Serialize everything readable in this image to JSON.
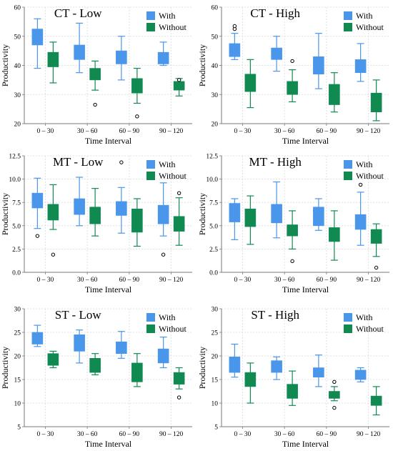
{
  "colors": {
    "with": "#4a96ea",
    "without": "#118a52",
    "grid": "#d9d9d9",
    "axis": "#777777",
    "outlier": "#000000"
  },
  "chart_data": [
    {
      "type": "boxplot",
      "title": "CT - Low",
      "xlabel": "Time Interval",
      "ylabel": "Productivity",
      "ylim": [
        20,
        60
      ],
      "yticks": [
        "20",
        "30",
        "40",
        "50",
        "60"
      ],
      "grid": true,
      "legend": "top-right",
      "categories": [
        "0 – 30",
        "30 – 60",
        "60 – 90",
        "90 – 120"
      ],
      "series": [
        {
          "name": "With",
          "boxes": [
            {
              "whislo": 39,
              "q1": 47,
              "q3": 52.5,
              "whishi": 56,
              "fliers": []
            },
            {
              "whislo": 37.5,
              "q1": 42,
              "q3": 47,
              "whishi": 54.5,
              "fliers": []
            },
            {
              "whislo": 35,
              "q1": 40.5,
              "q3": 45,
              "whishi": 50,
              "fliers": []
            },
            {
              "whislo": 40,
              "q1": 40.5,
              "q3": 44.5,
              "whishi": 48,
              "fliers": []
            }
          ]
        },
        {
          "name": "Without",
          "boxes": [
            {
              "whislo": 34,
              "q1": 39.5,
              "q3": 44.5,
              "whishi": 48,
              "fliers": []
            },
            {
              "whislo": 31.5,
              "q1": 35,
              "q3": 39,
              "whishi": 41.5,
              "fliers": [
                26.5
              ]
            },
            {
              "whislo": 27,
              "q1": 30.5,
              "q3": 35.5,
              "whishi": 39,
              "fliers": [
                22.5
              ]
            },
            {
              "whislo": 29.5,
              "q1": 31.5,
              "q3": 34.5,
              "whishi": 35.5,
              "fliers": [
                35
              ]
            }
          ]
        }
      ]
    },
    {
      "type": "boxplot",
      "title": "CT - High",
      "xlabel": "Time Interval",
      "ylabel": "Productivity",
      "ylim": [
        20,
        60
      ],
      "yticks": [
        "20",
        "30",
        "40",
        "50",
        "60"
      ],
      "grid": true,
      "legend": "top-right",
      "categories": [
        "0 – 30",
        "30 – 60",
        "60 – 90",
        "90 – 120"
      ],
      "series": [
        {
          "name": "With",
          "boxes": [
            {
              "whislo": 42,
              "q1": 43,
              "q3": 47.5,
              "whishi": 51,
              "fliers": [
                52.5,
                53.5
              ]
            },
            {
              "whislo": 38,
              "q1": 42,
              "q3": 46,
              "whishi": 50,
              "fliers": []
            },
            {
              "whislo": 32,
              "q1": 37,
              "q3": 43,
              "whishi": 51,
              "fliers": []
            },
            {
              "whislo": 34.5,
              "q1": 37.5,
              "q3": 42,
              "whishi": 47.5,
              "fliers": []
            }
          ]
        },
        {
          "name": "Without",
          "boxes": [
            {
              "whislo": 25.5,
              "q1": 31,
              "q3": 37,
              "whishi": 42,
              "fliers": []
            },
            {
              "whislo": 27.5,
              "q1": 30,
              "q3": 34.5,
              "whishi": 38.5,
              "fliers": [
                41.5
              ]
            },
            {
              "whislo": 24,
              "q1": 26.5,
              "q3": 33.5,
              "whishi": 37.5,
              "fliers": []
            },
            {
              "whislo": 21,
              "q1": 24,
              "q3": 30.5,
              "whishi": 35,
              "fliers": []
            }
          ]
        }
      ]
    },
    {
      "type": "boxplot",
      "title": "MT - Low",
      "xlabel": "Time Interval",
      "ylabel": "Productivity",
      "ylim": [
        0,
        12.5
      ],
      "yticks": [
        "0.0",
        "2.5",
        "5.0",
        "7.5",
        "10.0",
        "12.5"
      ],
      "grid": true,
      "legend": "top-right",
      "categories": [
        "0 – 30",
        "30 – 60",
        "60 – 90",
        "90 – 120"
      ],
      "series": [
        {
          "name": "With",
          "boxes": [
            {
              "whislo": 4.7,
              "q1": 6.9,
              "q3": 8.5,
              "whishi": 10.1,
              "fliers": [
                3.9
              ]
            },
            {
              "whislo": 5.0,
              "q1": 6.2,
              "q3": 7.9,
              "whishi": 10.2,
              "fliers": []
            },
            {
              "whislo": 4.2,
              "q1": 6.1,
              "q3": 7.6,
              "whishi": 9.1,
              "fliers": [
                11.8
              ]
            },
            {
              "whislo": 3.9,
              "q1": 5.2,
              "q3": 7.2,
              "whishi": 9.6,
              "fliers": [
                1.9
              ]
            }
          ]
        },
        {
          "name": "Without",
          "boxes": [
            {
              "whislo": 4.6,
              "q1": 5.6,
              "q3": 7.3,
              "whishi": 9.4,
              "fliers": [
                1.9
              ]
            },
            {
              "whislo": 3.9,
              "q1": 5.2,
              "q3": 7.0,
              "whishi": 9.0,
              "fliers": []
            },
            {
              "whislo": 2.8,
              "q1": 4.3,
              "q3": 6.8,
              "whishi": 7.9,
              "fliers": []
            },
            {
              "whislo": 2.9,
              "q1": 4.4,
              "q3": 6.0,
              "whishi": 8.0,
              "fliers": [
                8.5
              ]
            }
          ]
        }
      ]
    },
    {
      "type": "boxplot",
      "title": "MT - High",
      "xlabel": "Time Interval",
      "ylabel": "Productivity",
      "ylim": [
        0,
        12.5
      ],
      "yticks": [
        "0.0",
        "2.5",
        "5.0",
        "7.5",
        "10.0",
        "12.5"
      ],
      "grid": true,
      "legend": "top-right",
      "categories": [
        "0 – 30",
        "30 – 60",
        "60 – 90",
        "90 – 120"
      ],
      "series": [
        {
          "name": "With",
          "boxes": [
            {
              "whislo": 3.5,
              "q1": 5.4,
              "q3": 7.4,
              "whishi": 7.9,
              "fliers": []
            },
            {
              "whislo": 3.7,
              "q1": 5.3,
              "q3": 7.3,
              "whishi": 9.7,
              "fliers": []
            },
            {
              "whislo": 4.5,
              "q1": 5.0,
              "q3": 7.0,
              "whishi": 7.9,
              "fliers": []
            },
            {
              "whislo": 2.9,
              "q1": 4.6,
              "q3": 6.2,
              "whishi": 8.6,
              "fliers": [
                9.4
              ]
            }
          ]
        },
        {
          "name": "Without",
          "boxes": [
            {
              "whislo": 3.0,
              "q1": 4.9,
              "q3": 6.8,
              "whishi": 8.2,
              "fliers": []
            },
            {
              "whislo": 2.5,
              "q1": 3.9,
              "q3": 5.1,
              "whishi": 6.6,
              "fliers": [
                1.2
              ]
            },
            {
              "whislo": 1.3,
              "q1": 3.3,
              "q3": 4.8,
              "whishi": 6.6,
              "fliers": []
            },
            {
              "whislo": 1.7,
              "q1": 3.1,
              "q3": 4.6,
              "whishi": 5.2,
              "fliers": [
                0.5
              ]
            }
          ]
        }
      ]
    },
    {
      "type": "boxplot",
      "title": "ST - Low",
      "xlabel": "Time Interval",
      "ylabel": "Productivity",
      "ylim": [
        5,
        30
      ],
      "yticks": [
        "5",
        "10",
        "15",
        "20",
        "25",
        "30"
      ],
      "grid": true,
      "legend": "top-right",
      "categories": [
        "0 – 30",
        "30 – 60",
        "60 – 90",
        "90 – 120"
      ],
      "series": [
        {
          "name": "With",
          "boxes": [
            {
              "whislo": 22,
              "q1": 22.5,
              "q3": 25,
              "whishi": 26.5,
              "fliers": []
            },
            {
              "whislo": 18.5,
              "q1": 21,
              "q3": 24.5,
              "whishi": 25.5,
              "fliers": []
            },
            {
              "whislo": 19.5,
              "q1": 20.5,
              "q3": 23,
              "whishi": 25.2,
              "fliers": []
            },
            {
              "whislo": 17.5,
              "q1": 18.5,
              "q3": 21.5,
              "whishi": 24,
              "fliers": []
            }
          ]
        },
        {
          "name": "Without",
          "boxes": [
            {
              "whislo": 17.5,
              "q1": 18,
              "q3": 20.5,
              "whishi": 21,
              "fliers": []
            },
            {
              "whislo": 16,
              "q1": 16.5,
              "q3": 19.5,
              "whishi": 20.5,
              "fliers": []
            },
            {
              "whislo": 13.5,
              "q1": 14.5,
              "q3": 18.5,
              "whishi": 20.5,
              "fliers": []
            },
            {
              "whislo": 13,
              "q1": 14,
              "q3": 16.5,
              "whishi": 17.5,
              "fliers": [
                11.2
              ]
            }
          ]
        }
      ]
    },
    {
      "type": "boxplot",
      "title": "ST - High",
      "xlabel": "Time Interval",
      "ylabel": "Productivity",
      "ylim": [
        5,
        30
      ],
      "yticks": [
        "5",
        "10",
        "15",
        "20",
        "25",
        "30"
      ],
      "grid": true,
      "legend": "top-right",
      "categories": [
        "0 – 30",
        "30 – 60",
        "60 – 90",
        "90 – 120"
      ],
      "series": [
        {
          "name": "With",
          "boxes": [
            {
              "whislo": 15.5,
              "q1": 16.5,
              "q3": 19.8,
              "whishi": 22.5,
              "fliers": []
            },
            {
              "whislo": 15,
              "q1": 16.5,
              "q3": 19,
              "whishi": 19.8,
              "fliers": []
            },
            {
              "whislo": 13.5,
              "q1": 15.5,
              "q3": 17.5,
              "whishi": 20.2,
              "fliers": []
            },
            {
              "whislo": 14.5,
              "q1": 15,
              "q3": 17,
              "whishi": 17.5,
              "fliers": []
            }
          ]
        },
        {
          "name": "Without",
          "boxes": [
            {
              "whislo": 10,
              "q1": 13.5,
              "q3": 16.5,
              "whishi": 18.5,
              "fliers": []
            },
            {
              "whislo": 9.5,
              "q1": 11,
              "q3": 14,
              "whishi": 16.8,
              "fliers": []
            },
            {
              "whislo": 10.5,
              "q1": 11,
              "q3": 12.5,
              "whishi": 13.5,
              "fliers": [
                14.5,
                9
              ]
            },
            {
              "whislo": 7.5,
              "q1": 9.5,
              "q3": 11.5,
              "whishi": 13.5,
              "fliers": []
            }
          ]
        }
      ]
    }
  ]
}
